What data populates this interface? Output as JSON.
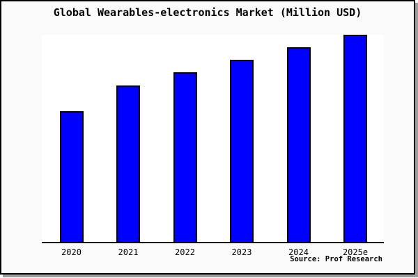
{
  "title": "Global Wearables-electronics Market (Million USD)",
  "source": "Source: Prof Research",
  "frame": {
    "background": "#fafafa",
    "border_color": "#000000",
    "shadow_color": "#9e9e9e"
  },
  "chart_data": {
    "type": "bar",
    "title": "Global Wearables-electronics Market (Million USD)",
    "categories": [
      "2020",
      "2021",
      "2022",
      "2023",
      "2024",
      "2025e"
    ],
    "values": [
      63,
      75.5,
      82,
      88,
      94,
      100
    ],
    "values_note": "no y-axis scale or value labels shown in image; values are bar heights as percent of the tallest (2025e) bar",
    "xlabel": "",
    "ylabel": "",
    "y_axis_labels_visible": false,
    "gridlines": false,
    "legend": false,
    "bar_color": "#0000ff",
    "bar_edge_color": "#000000",
    "plot_background": "#ffffff",
    "axis_line_color": "#000000",
    "annotation": "Source: Prof Research"
  }
}
